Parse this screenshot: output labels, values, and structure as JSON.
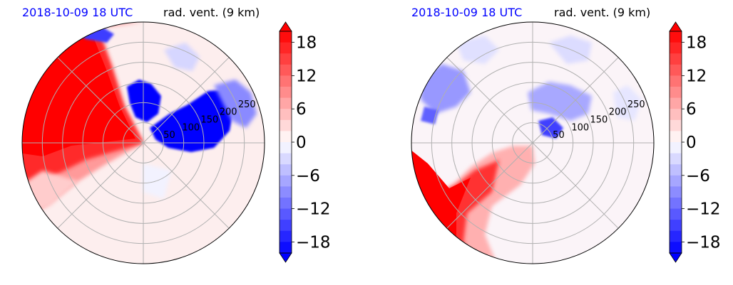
{
  "chart_data": [
    {
      "type": "polar-contourf",
      "title_left": "2018-10-09 18 UTC",
      "title_right": "rad. vent. (9 km)",
      "radial_ticks": [
        "50",
        "100",
        "150",
        "200",
        "250"
      ],
      "radial_values": [
        50,
        100,
        150,
        200,
        250
      ],
      "radial_max": 300,
      "colorbar": {
        "ticks": [
          "18",
          "12",
          "6",
          "0",
          "−6",
          "−12",
          "−18"
        ],
        "tick_values": [
          18,
          12,
          6,
          0,
          -6,
          -12,
          -18
        ],
        "vmin": -20,
        "vmax": 20,
        "extend": "both",
        "cmap": "bwr"
      }
    },
    {
      "type": "polar-contourf",
      "title_left": "2018-10-09 18 UTC",
      "title_right": "rad. vent. (9 km)",
      "radial_ticks": [
        "50",
        "100",
        "150",
        "200",
        "250"
      ],
      "radial_values": [
        50,
        100,
        150,
        200,
        250
      ],
      "radial_max": 300,
      "colorbar": {
        "ticks": [
          "18",
          "12",
          "6",
          "0",
          "−6",
          "−12",
          "−18"
        ],
        "tick_values": [
          18,
          12,
          6,
          0,
          -6,
          -12,
          -18
        ],
        "vmin": -20,
        "vmax": 20,
        "extend": "both",
        "cmap": "bwr"
      }
    }
  ],
  "colors": {
    "positive": "#ff0000",
    "negative": "#0000ff",
    "neutral": "#ffffff",
    "grid": "#b0b0b0"
  }
}
